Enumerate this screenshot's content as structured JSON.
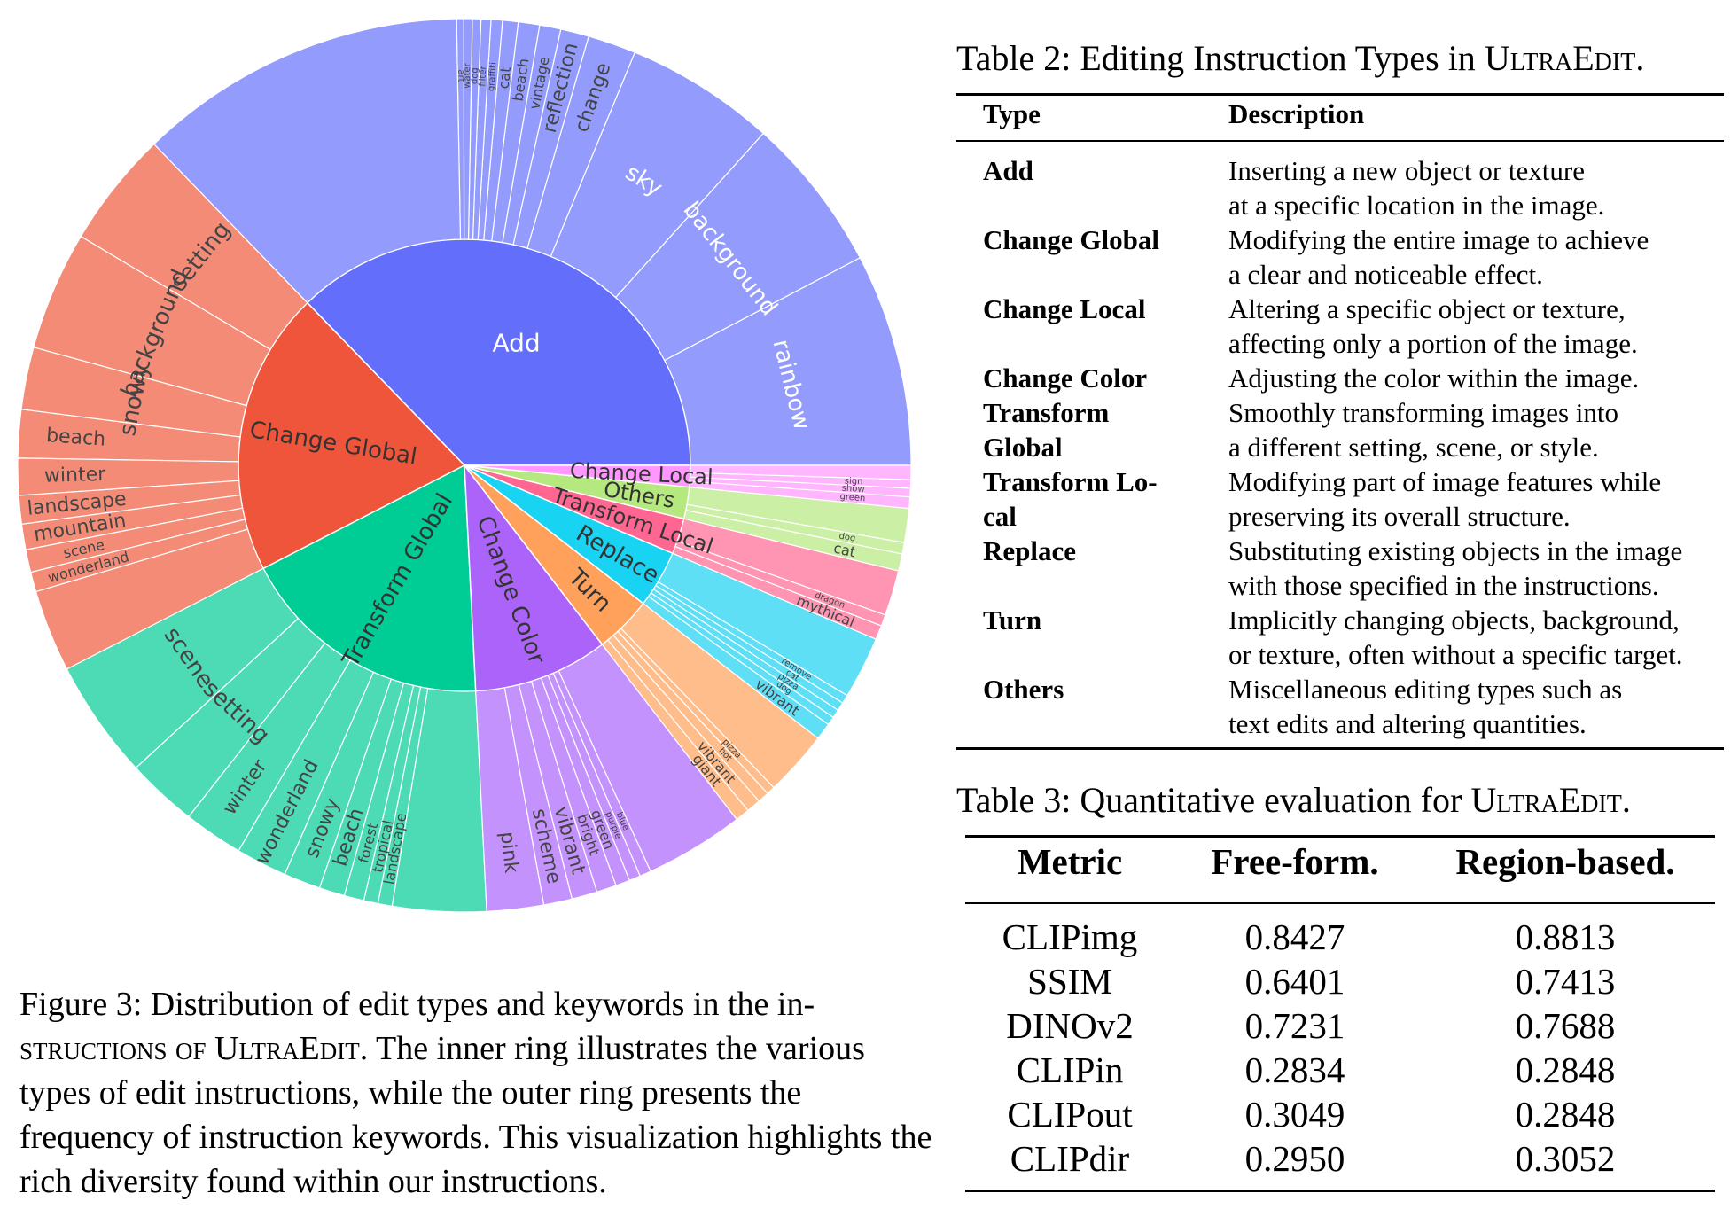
{
  "chart_data": {
    "type": "sunburst",
    "inner": [
      {
        "name": "Add",
        "value": 36.3,
        "color": "#636efa"
      },
      {
        "name": "Change Global",
        "value": 19.8,
        "color": "#ef553b"
      },
      {
        "name": "Transform Global",
        "value": 17.8,
        "color": "#00cc96"
      },
      {
        "name": "Change Color",
        "value": 9.4,
        "color": "#ab63fa"
      },
      {
        "name": "Turn",
        "value": 4.0,
        "color": "#ffa15a"
      },
      {
        "name": "Replace",
        "value": 4.0,
        "color": "#19d3f3"
      },
      {
        "name": "Transform Local",
        "value": 2.5,
        "color": "#ff6692"
      },
      {
        "name": "Others",
        "value": 2.2,
        "color": "#b6e880"
      },
      {
        "name": "Change Local",
        "value": 1.5,
        "color": "#ff97ff"
      }
    ],
    "outer": [
      {
        "parent": "Add",
        "color": "#939bfc",
        "keywords": [
          {
            "name": "rainbow",
            "value": 7.5
          },
          {
            "name": "background",
            "value": 5.5
          },
          {
            "name": "sky",
            "value": 5.3
          },
          {
            "name": "change",
            "value": 1.7
          },
          {
            "name": "reflection",
            "value": 1.0
          },
          {
            "name": "vintage",
            "value": 0.75
          },
          {
            "name": "beach",
            "value": 0.75
          },
          {
            "name": "cat",
            "value": 0.55
          },
          {
            "name": "graffiti",
            "value": 0.4
          },
          {
            "name": "filter",
            "value": 0.35
          },
          {
            "name": "dog",
            "value": 0.3
          },
          {
            "name": "water",
            "value": 0.3
          },
          {
            "name": "art",
            "value": 0.25
          },
          {
            "name": "",
            "value": 11.65
          }
        ]
      },
      {
        "parent": "Change Global",
        "color": "#f48b77",
        "keywords": [
          {
            "name": "setting",
            "value": 4.1
          },
          {
            "name": "background",
            "value": 4.2
          },
          {
            "name": "snowy",
            "value": 2.2
          },
          {
            "name": "beach",
            "value": 1.7
          },
          {
            "name": "winter",
            "value": 1.3
          },
          {
            "name": "landscape",
            "value": 1.0
          },
          {
            "name": "mountain",
            "value": 0.9
          },
          {
            "name": "scene",
            "value": 0.8
          },
          {
            "name": "wonderland",
            "value": 0.7
          },
          {
            "name": "",
            "value": 2.9
          }
        ]
      },
      {
        "parent": "Transform Global",
        "color": "#4ddbb5",
        "keywords": [
          {
            "name": "scene",
            "value": 4.2
          },
          {
            "name": "setting",
            "value": 2.5
          },
          {
            "name": "winter",
            "value": 2.1
          },
          {
            "name": "wonderland",
            "value": 1.8
          },
          {
            "name": "snowy",
            "value": 1.3
          },
          {
            "name": "beach",
            "value": 0.9
          },
          {
            "name": "forest",
            "value": 0.7
          },
          {
            "name": "tropical",
            "value": 0.5
          },
          {
            "name": "landscape",
            "value": 0.5
          },
          {
            "name": "",
            "value": 3.3
          }
        ]
      },
      {
        "parent": "Change Color",
        "color": "#c492fc",
        "keywords": [
          {
            "name": "pink",
            "value": 2.0
          },
          {
            "name": "scheme",
            "value": 1.0
          },
          {
            "name": "vibrant",
            "value": 0.9
          },
          {
            "name": "bright",
            "value": 0.7
          },
          {
            "name": "green",
            "value": 0.5
          },
          {
            "name": "purple",
            "value": 0.4
          },
          {
            "name": "blue",
            "value": 0.4
          },
          {
            "name": "",
            "value": 3.5
          }
        ]
      },
      {
        "parent": "Turn",
        "color": "#ffbd8c",
        "keywords": [
          {
            "name": "giant",
            "value": 0.5
          },
          {
            "name": "vibrant",
            "value": 0.5
          },
          {
            "name": "hot",
            "value": 0.4
          },
          {
            "name": "pizza",
            "value": 0.3
          },
          {
            "name": "",
            "value": 2.3
          }
        ]
      },
      {
        "parent": "Replace",
        "color": "#5edff6",
        "keywords": [
          {
            "name": "vibrant",
            "value": 0.6
          },
          {
            "name": "dog",
            "value": 0.3
          },
          {
            "name": "pizza",
            "value": 0.3
          },
          {
            "name": "cat",
            "value": 0.3
          },
          {
            "name": "remove",
            "value": 0.3
          },
          {
            "name": "",
            "value": 2.2
          }
        ]
      },
      {
        "parent": "Transform Local",
        "color": "#ff94b3",
        "keywords": [
          {
            "name": "mythical",
            "value": 0.5
          },
          {
            "name": "dragon",
            "value": 0.4
          },
          {
            "name": "",
            "value": 1.6
          }
        ]
      },
      {
        "parent": "Others",
        "color": "#ccefa6",
        "keywords": [
          {
            "name": "cat",
            "value": 0.6
          },
          {
            "name": "dog",
            "value": 0.4
          },
          {
            "name": "",
            "value": 1.2
          }
        ]
      },
      {
        "parent": "Change Local",
        "color": "#ffb6ff",
        "keywords": [
          {
            "name": "green",
            "value": 0.4
          },
          {
            "name": "show",
            "value": 0.3
          },
          {
            "name": "sign",
            "value": 0.3
          },
          {
            "name": "",
            "value": 0.5
          }
        ]
      }
    ]
  },
  "figure": {
    "caption_label": "Figure 3: Distribution of edit types and keywords in the in-",
    "caption_sc": "structions of UltraEdit.",
    "caption_rest": "The inner ring illustrates the various types of edit instructions, while the outer ring presents the frequency of instruction keywords. This visualization highlights the rich diversity found within our instructions."
  },
  "table2": {
    "title_prefix": "Table 2: Editing Instruction Types in",
    "title_name": "UltraEdit.",
    "headers": [
      "Type",
      "Description"
    ],
    "rows": [
      {
        "type": [
          "Add"
        ],
        "desc": [
          "Inserting a new object or texture",
          "at a specific location in the image."
        ]
      },
      {
        "type": [
          "Change Global"
        ],
        "desc": [
          "Modifying the entire image to achieve",
          "a clear and noticeable effect."
        ]
      },
      {
        "type": [
          "Change Local"
        ],
        "desc": [
          "Altering a specific object or texture,",
          "affecting only a portion of the image."
        ]
      },
      {
        "type": [
          "Change Color"
        ],
        "desc": [
          "Adjusting the color within the image."
        ]
      },
      {
        "type": [
          "Transform",
          "Global"
        ],
        "desc": [
          "Smoothly transforming images into",
          "a different setting, scene, or style."
        ]
      },
      {
        "type": [
          "Transform Lo-",
          "cal"
        ],
        "desc": [
          "Modifying part of image features while",
          "preserving its overall structure."
        ]
      },
      {
        "type": [
          "Replace"
        ],
        "desc": [
          "Substituting existing objects in the image",
          "with those specified in the instructions."
        ]
      },
      {
        "type": [
          "Turn"
        ],
        "desc": [
          "Implicitly changing objects, background,",
          "or texture, often without a specific target."
        ]
      },
      {
        "type": [
          "Others"
        ],
        "desc": [
          "Miscellaneous editing types such as",
          "text edits and altering quantities."
        ]
      }
    ]
  },
  "table3": {
    "title_prefix": "Table 3: Quantitative evaluation for",
    "title_name": "UltraEdit.",
    "headers": [
      "Metric",
      "Free-form.",
      "Region-based."
    ],
    "rows": [
      [
        "CLIPimg",
        "0.8427",
        "0.8813"
      ],
      [
        "SSIM",
        "0.6401",
        "0.7413"
      ],
      [
        "DINOv2",
        "0.7231",
        "0.7688"
      ],
      [
        "CLIPin",
        "0.2834",
        "0.2848"
      ],
      [
        "CLIPout",
        "0.3049",
        "0.2848"
      ],
      [
        "CLIPdir",
        "0.2950",
        "0.3052"
      ]
    ]
  }
}
